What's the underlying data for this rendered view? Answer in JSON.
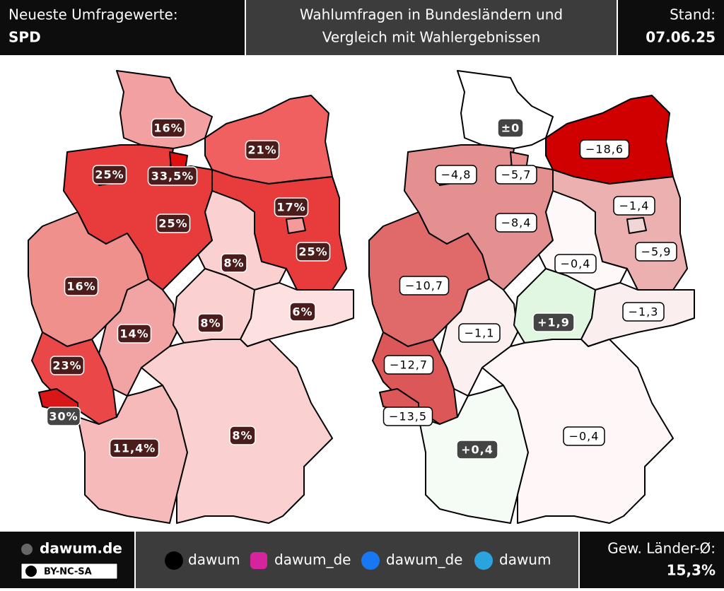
{
  "header": {
    "title": "Neueste Umfragewerte:",
    "party": "SPD",
    "subtitle_1": "Wahlumfragen in Bundesländern und",
    "subtitle_2": "Vergleich mit Wahlergebnissen",
    "stand_label": "Stand:",
    "date": "07.06.25"
  },
  "maps": [
    {
      "labels": [
        "16%",
        "25%",
        "33,5%",
        "21%",
        "25%",
        "17%",
        "25%",
        "8%",
        "16%",
        "14%",
        "8%",
        "6%",
        "23%",
        "30%",
        "11,4%",
        "8%"
      ]
    },
    {
      "labels": [
        "±0",
        "−4,8",
        "−5,7",
        "−18,6",
        "−8,4",
        "−1,4",
        "−5,9",
        "−0,4",
        "−10,7",
        "−1,1",
        "+1,9",
        "−1,3",
        "−12,7",
        "−13,5",
        "+0,4",
        "−0,4"
      ]
    }
  ],
  "footer": {
    "site": "dawum.de",
    "license": "BY-NC-SA",
    "social": [
      {
        "handle": "dawum"
      },
      {
        "handle": "dawum_de"
      },
      {
        "handle": "dawum_de"
      },
      {
        "handle": "dawum"
      }
    ],
    "avg_label": "Gew. Länder-Ø:",
    "avg_value": "15,3%"
  }
}
